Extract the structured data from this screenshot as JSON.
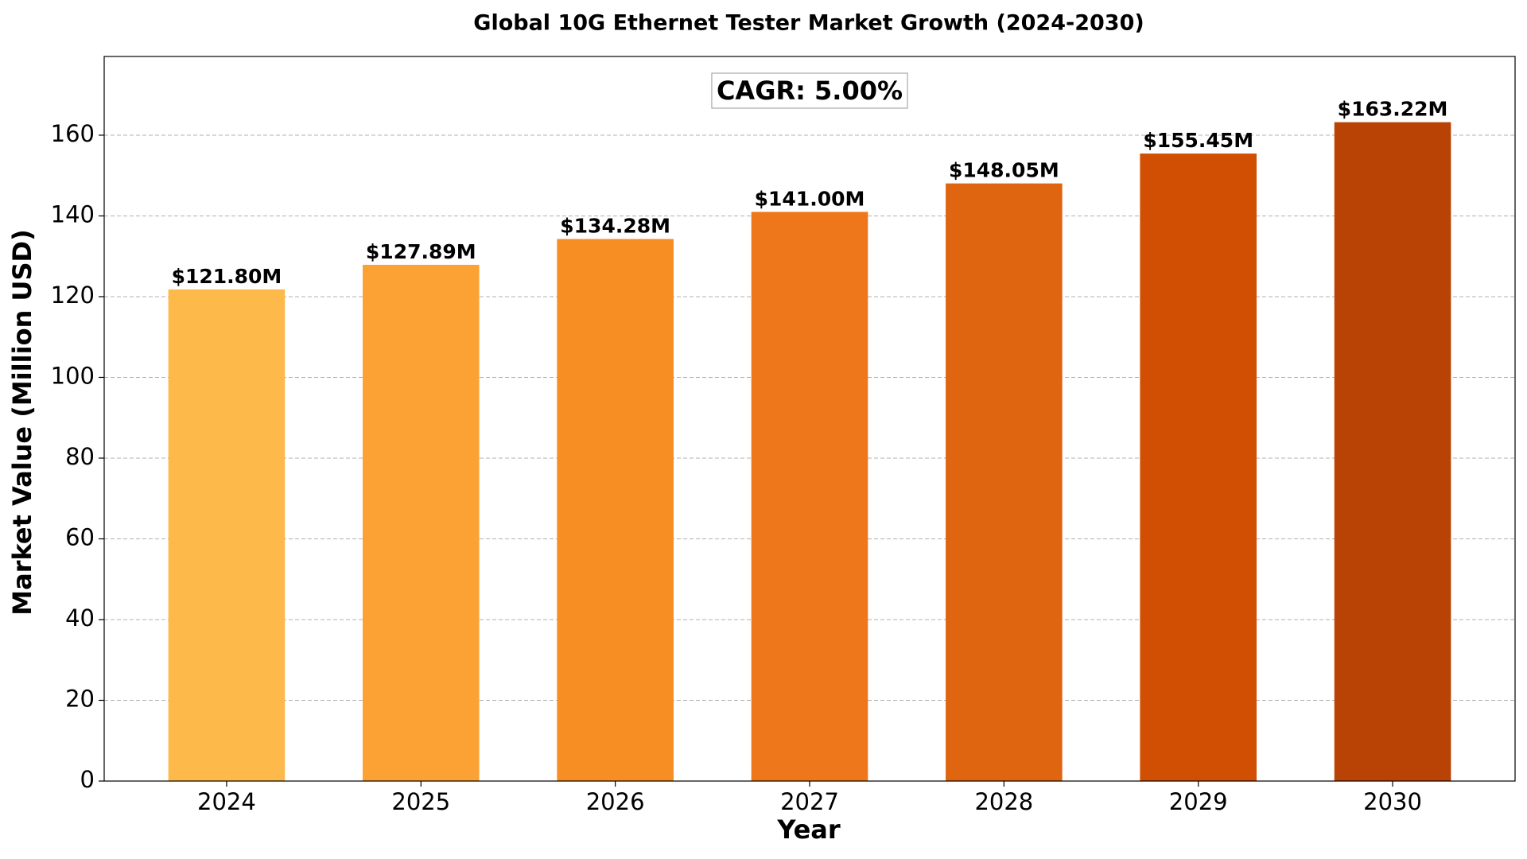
{
  "chart_data": {
    "type": "bar",
    "title": "Global 10G Ethernet Tester Market Growth (2024-2030)",
    "x_label": "Year",
    "y_label": "Market Value (Million USD)",
    "annotation": "CAGR: 5.00%",
    "categories": [
      "2024",
      "2025",
      "2026",
      "2027",
      "2028",
      "2029",
      "2030"
    ],
    "values": [
      121.8,
      127.89,
      134.28,
      141.0,
      148.05,
      155.45,
      163.22
    ],
    "value_labels": [
      "$121.80M",
      "$127.89M",
      "$134.28M",
      "$141.00M",
      "$148.05M",
      "$155.45M",
      "$163.22M"
    ],
    "colors": [
      "#fdb94a",
      "#fca234",
      "#f68e24",
      "#ee771c",
      "#e06511",
      "#d04f03",
      "#b84304"
    ],
    "ylim": [
      0,
      179.5
    ],
    "yticks": [
      0,
      20,
      40,
      60,
      80,
      100,
      120,
      140,
      160
    ],
    "grid": true
  }
}
